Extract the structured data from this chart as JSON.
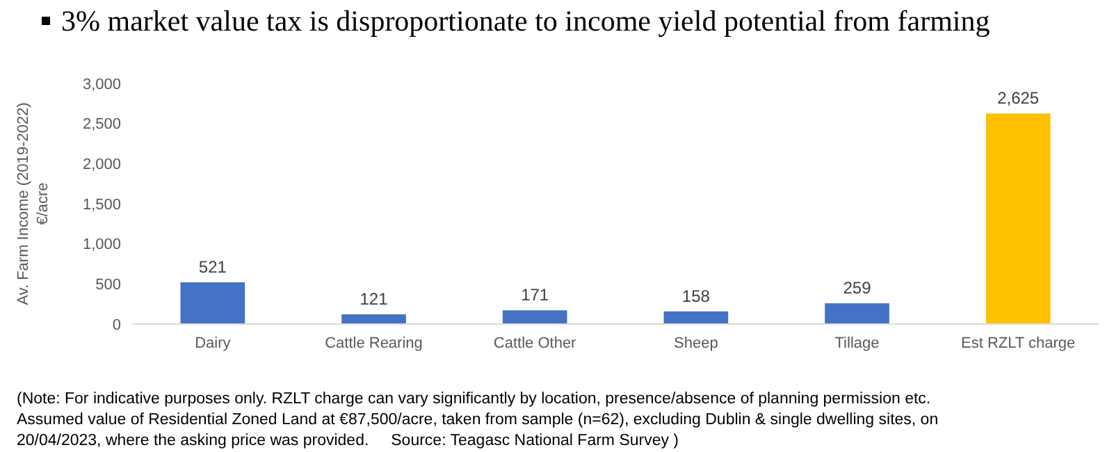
{
  "chart_data": {
    "type": "bar",
    "title": "3% market value tax is disproportionate to income yield potential from farming",
    "ylabel": "Av. Farm Income (2019-2022)\n€/acre",
    "categories": [
      "Dairy",
      "Cattle Rearing",
      "Cattle Other",
      "Sheep",
      "Tillage",
      "Est RZLT charge"
    ],
    "values": [
      521,
      121,
      171,
      158,
      259,
      2625
    ],
    "colors": [
      "#4472c4",
      "#4472c4",
      "#4472c4",
      "#4472c4",
      "#4472c4",
      "#ffc000"
    ],
    "value_labels": [
      "521",
      "121",
      "171",
      "158",
      "259",
      "2,625"
    ],
    "ylim": [
      0,
      3000
    ],
    "yticks": [
      0,
      500,
      {
        "value": 1000,
        "label": "1,000"
      },
      {
        "value": 1500,
        "label": "1,500"
      },
      {
        "value": 2000,
        "label": "2,000"
      },
      {
        "value": 2500,
        "label": "2,500"
      },
      {
        "value": 3000,
        "label": "3,000"
      }
    ],
    "grid": false,
    "annotations": [
      "(Note: For indicative purposes only. RZLT charge can vary significantly by location, presence/absence of planning permission etc. Assumed value of Residential Zoned Land at €87,500/acre, taken from sample (n=62), excluding Dublin & single dwelling sites, on 20/04/2023, where the asking price was provided.     Source: Teagasc National Farm Survey )"
    ]
  }
}
